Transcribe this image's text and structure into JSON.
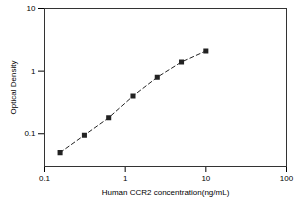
{
  "chart_data": {
    "type": "scatter",
    "x_label": "Human CCR2 concentration(ng/mL)",
    "y_label": "Optical Density",
    "x": [
      0.156,
      0.3125,
      0.625,
      1.25,
      2.5,
      5,
      10
    ],
    "values": [
      0.05,
      0.095,
      0.18,
      0.4,
      0.8,
      1.4,
      2.1
    ],
    "color": "#222222",
    "marker": "square",
    "line_style": "dashed",
    "log": true,
    "grid": false,
    "xlim": [
      0.1,
      100
    ],
    "xticks": [
      0.1,
      1,
      10,
      100
    ],
    "ylim": [
      0.03,
      10
    ],
    "yticks": [
      0.1,
      1,
      10
    ]
  }
}
